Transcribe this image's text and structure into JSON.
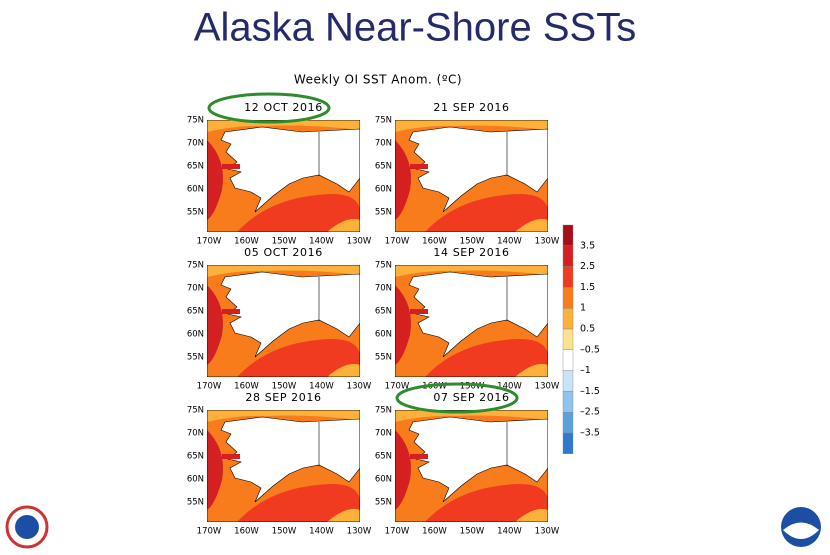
{
  "header": {
    "title": "Alaska Near-Shore SSTs",
    "subtitle": "Weekly OI SST Anom. (ºC)"
  },
  "panels": [
    {
      "title": "12 OCT 2016",
      "highlighted": true
    },
    {
      "title": "21 SEP 2016",
      "highlighted": false
    },
    {
      "title": "05 OCT 2016",
      "highlighted": false
    },
    {
      "title": "14 SEP 2016",
      "highlighted": false
    },
    {
      "title": "28 SEP 2016",
      "highlighted": false
    },
    {
      "title": "07 SEP 2016",
      "highlighted": true
    }
  ],
  "lat_labels": [
    "75N",
    "70N",
    "65N",
    "60N",
    "55N"
  ],
  "lon_labels": [
    "170W",
    "160W",
    "150W",
    "140W",
    "130W"
  ],
  "colorbar": {
    "labels": [
      "3.5",
      "2.5",
      "1.5",
      "1",
      "0.5",
      "–0.5",
      "–1",
      "–1.5",
      "–2.5",
      "–3.5"
    ],
    "colors": [
      "#a50f15",
      "#d42020",
      "#f03b20",
      "#f87b1c",
      "#fdb03a",
      "#fee38e",
      "#ffffff",
      "#c6e3f7",
      "#8fc3ec",
      "#5ba1de",
      "#2f78cc"
    ]
  }
}
